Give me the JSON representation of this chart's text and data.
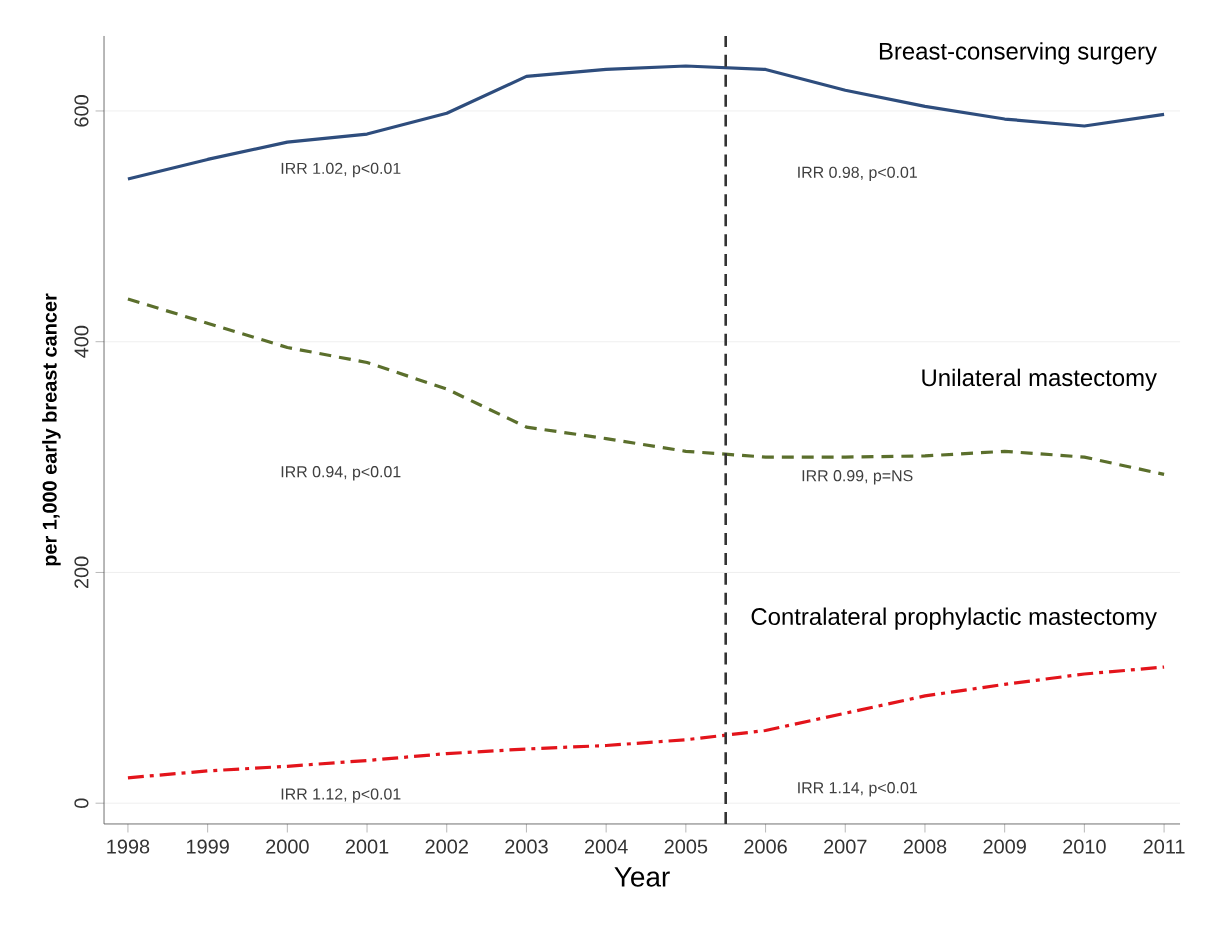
{
  "chart_data": {
    "type": "line",
    "xlabel": "Year",
    "ylabel": "per 1,000 early breast cancer",
    "x": [
      1998,
      1999,
      2000,
      2001,
      2002,
      2003,
      2004,
      2005,
      2006,
      2007,
      2008,
      2009,
      2010,
      2011
    ],
    "series": [
      {
        "name": "Breast-conserving surgery",
        "color": "#2e4d7d",
        "line_style": "solid",
        "values": [
          541,
          558,
          573,
          580,
          598,
          630,
          636,
          639,
          636,
          618,
          604,
          593,
          587,
          597
        ]
      },
      {
        "name": "Unilateral mastectomy",
        "color": "#5b6f2c",
        "line_style": "dashed",
        "values": [
          437,
          416,
          395,
          382,
          359,
          326,
          316,
          305,
          300,
          300,
          301,
          305,
          300,
          285
        ]
      },
      {
        "name": "Contralateral prophylactic mastectomy",
        "color": "#e3141b",
        "line_style": "dashdot",
        "values": [
          22,
          28,
          32,
          37,
          43,
          47,
          50,
          55,
          63,
          78,
          93,
          103,
          112,
          118
        ]
      }
    ],
    "xlim": [
      1997.7,
      2011.2
    ],
    "ylim": [
      -18,
      665
    ],
    "xticks": [
      1998,
      1999,
      2000,
      2001,
      2002,
      2003,
      2004,
      2005,
      2006,
      2007,
      2008,
      2009,
      2010,
      2011
    ],
    "yticks": [
      0,
      200,
      400,
      600
    ],
    "grid": "y",
    "marker": "none",
    "ref_lines": [
      {
        "axis": "x",
        "value": 2005.5,
        "color": "#333333",
        "line_style": "dashed"
      }
    ],
    "annotations": [
      "IRR 1.02, p<0.01",
      "IRR 0.98, p<0.01",
      "IRR 0.94, p<0.01",
      "IRR 0.99, p=NS",
      "IRR 1.12, p<0.01",
      "IRR 1.14, p<0.01"
    ]
  }
}
